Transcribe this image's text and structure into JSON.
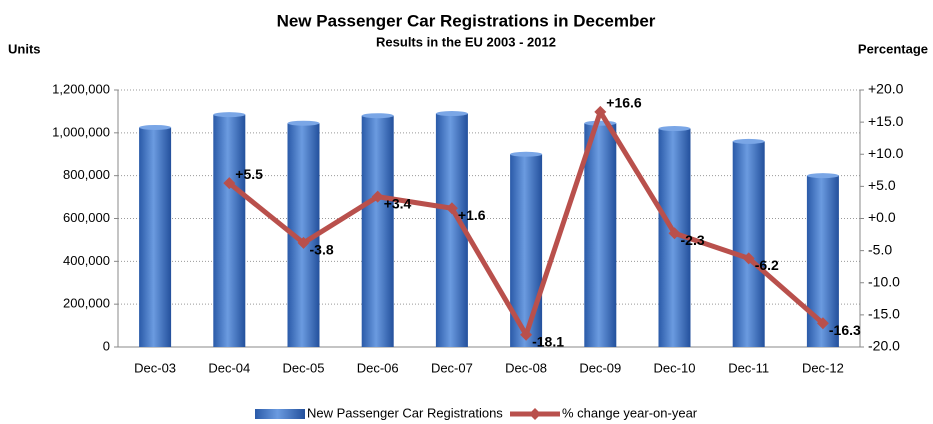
{
  "chart_data": {
    "type": "bar",
    "title": "New Passenger Car Registrations in December",
    "subtitle": "Results in the EU 2003 - 2012",
    "ylabel": "Units",
    "y2label": "Percentage",
    "categories": [
      "Dec-03",
      "Dec-04",
      "Dec-05",
      "Dec-06",
      "Dec-07",
      "Dec-08",
      "Dec-09",
      "Dec-10",
      "Dec-11",
      "Dec-12"
    ],
    "series": [
      {
        "name": "New Passenger Car Registrations",
        "type": "bar",
        "color": "#3a6fc0",
        "values": [
          1025000,
          1085000,
          1045000,
          1080000,
          1090000,
          900000,
          1045000,
          1020000,
          960000,
          800000
        ]
      },
      {
        "name": "% change year-on-year",
        "type": "line",
        "axis": "y2",
        "color": "#b9504c",
        "values": [
          null,
          5.5,
          -3.8,
          3.4,
          1.6,
          -18.1,
          16.6,
          -2.3,
          -6.2,
          -16.3
        ],
        "value_labels": [
          null,
          "+5.5",
          "-3.8",
          "+3.4",
          "+1.6",
          "-18.1",
          "+16.6",
          "-2.3",
          "-6.2",
          "-16.3"
        ]
      }
    ],
    "ylim": [
      0,
      1200000
    ],
    "yticks": [
      0,
      {
        "value": 200000,
        "label": "200,000"
      },
      {
        "value": 400000,
        "label": "400,000"
      },
      {
        "value": 600000,
        "label": "600,000"
      },
      {
        "value": 800000,
        "label": "800,000"
      },
      {
        "value": 1000000,
        "label": "1,000,000"
      },
      {
        "value": 1200000,
        "label": "1,200,000"
      }
    ],
    "y2lim": [
      -20,
      20
    ],
    "y2ticks": [
      {
        "value": -20,
        "label": "-20.0"
      },
      {
        "value": -15,
        "label": "-15.0"
      },
      {
        "value": -10,
        "label": "-10.0"
      },
      {
        "value": -5,
        "label": "-5.0"
      },
      {
        "value": 0,
        "label": "+0.0"
      },
      {
        "value": 5,
        "label": "+5.0"
      },
      {
        "value": 10,
        "label": "+10.0"
      },
      {
        "value": 15,
        "label": "+15.0"
      },
      {
        "value": 20,
        "label": "+20.0"
      }
    ],
    "grid": true,
    "legend": "bottom"
  }
}
